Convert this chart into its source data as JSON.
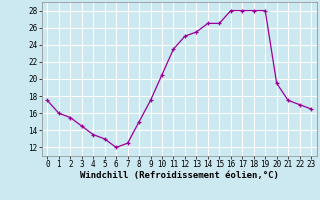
{
  "x": [
    0,
    1,
    2,
    3,
    4,
    5,
    6,
    7,
    8,
    9,
    10,
    11,
    12,
    13,
    14,
    15,
    16,
    17,
    18,
    19,
    20,
    21,
    22,
    23
  ],
  "y": [
    17.5,
    16.0,
    15.5,
    14.5,
    13.5,
    13.0,
    12.0,
    12.5,
    15.0,
    17.5,
    20.5,
    23.5,
    25.0,
    25.5,
    26.5,
    26.5,
    28.0,
    28.0,
    28.0,
    28.0,
    19.5,
    17.5,
    17.0,
    16.5
  ],
  "xlim": [
    -0.5,
    23.5
  ],
  "ylim": [
    11,
    29
  ],
  "yticks": [
    12,
    14,
    16,
    18,
    20,
    22,
    24,
    26,
    28
  ],
  "xticks": [
    0,
    1,
    2,
    3,
    4,
    5,
    6,
    7,
    8,
    9,
    10,
    11,
    12,
    13,
    14,
    15,
    16,
    17,
    18,
    19,
    20,
    21,
    22,
    23
  ],
  "xlabel": "Windchill (Refroidissement éolien,°C)",
  "line_color": "#990099",
  "marker": "+",
  "bg_color": "#cce8f0",
  "grid_color": "#ffffff",
  "label_fontsize": 6.5,
  "tick_fontsize": 5.5
}
